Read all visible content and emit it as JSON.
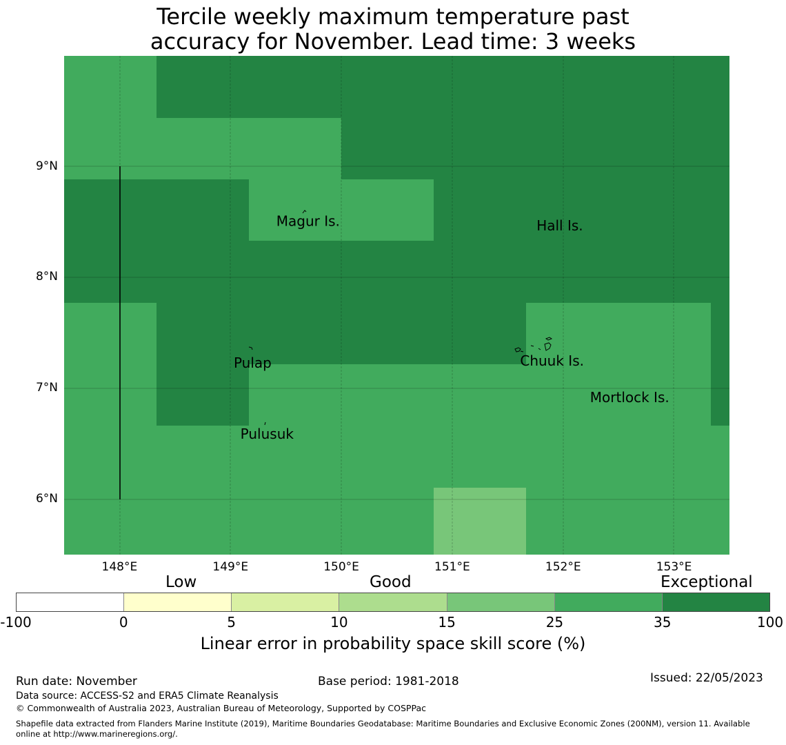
{
  "title_line1": "Tercile weekly maximum temperature past",
  "title_line2": "accuracy for November. Lead time: 3 weeks",
  "map": {
    "lon_range": [
      147.5,
      153.5
    ],
    "lat_range": [
      5.5,
      10.0
    ],
    "lon_ticks": [
      "148°E",
      "149°E",
      "150°E",
      "151°E",
      "152°E",
      "153°E"
    ],
    "lat_ticks": [
      "9°N",
      "8°N",
      "7°N",
      "6°N"
    ],
    "colors": {
      "exceptional": "#238443",
      "good_high": "#41ab5d",
      "good_mid": "#78c679"
    },
    "labels": [
      {
        "name": "Magur Is.",
        "lon": 149.7,
        "lat": 8.5
      },
      {
        "name": "Hall Is.",
        "lon": 151.97,
        "lat": 8.46
      },
      {
        "name": "Pulap",
        "lon": 149.2,
        "lat": 7.22
      },
      {
        "name": "Chuuk Is.",
        "lon": 151.9,
        "lat": 7.24
      },
      {
        "name": "Mortlock Is.",
        "lon": 152.6,
        "lat": 6.91
      },
      {
        "name": "Pulusuk",
        "lon": 149.33,
        "lat": 6.58
      }
    ]
  },
  "legend": {
    "categories": [
      "Low",
      "Good",
      "Exceptional"
    ],
    "boundaries": [
      "-100",
      "0",
      "5",
      "10",
      "15",
      "25",
      "35",
      "100"
    ],
    "colors": [
      "#ffffff",
      "#ffffcc",
      "#d9f0a3",
      "#addd8e",
      "#78c679",
      "#41ab5d",
      "#238443"
    ],
    "label": "Linear error in probability space skill score (%)"
  },
  "footer": {
    "run_date": "Run date: November",
    "base_period": "Base period: 1981-2018",
    "issued": "Issued: 22/05/2023",
    "data_source": "Data source: ACCESS-S2 and ERA5 Climate Reanalysis",
    "copyright": "© Commonwealth of Australia 2023, Australian Bureau of Meteorology, Supported by COSPPac",
    "shapefile_line1": "Shapefile data extracted from Flanders Marine Institute (2019), Maritime Boundaries Geodatabase: Maritime Boundaries and Exclusive Economic Zones (200NM), version 11. Available",
    "shapefile_line2": "online at http://www.marineregions.org/."
  }
}
